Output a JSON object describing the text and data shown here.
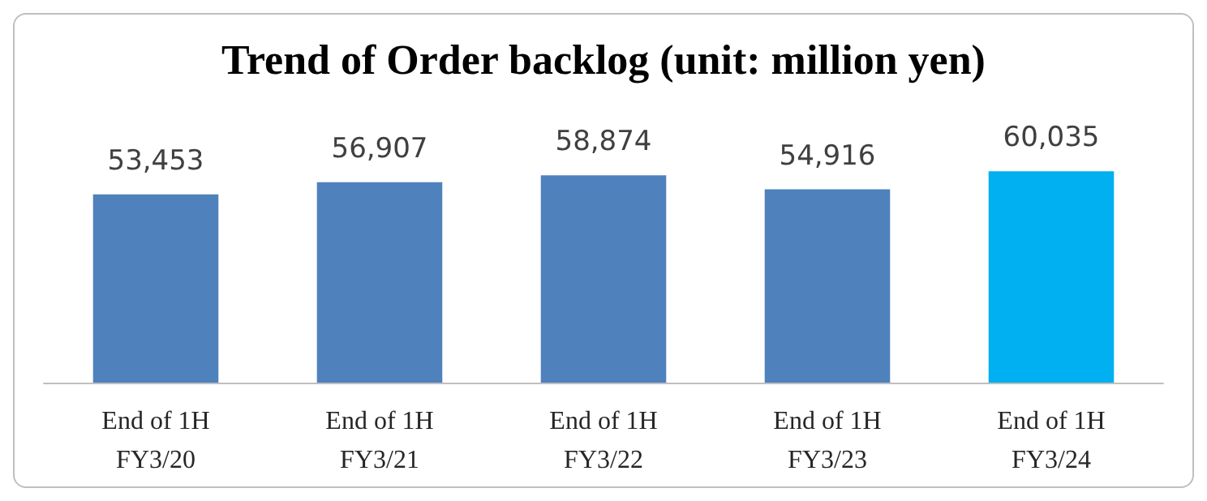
{
  "chart_data": {
    "type": "bar",
    "title": "Trend of Order backlog (unit: million yen)",
    "categories": [
      "End of 1H\nFY3/20",
      "End of 1H\nFY3/21",
      "End of 1H\nFY3/22",
      "End of 1H\nFY3/23",
      "End of 1H\nFY3/24"
    ],
    "values": [
      53453,
      56907,
      58874,
      54916,
      60035
    ],
    "value_labels": [
      "53,453",
      "56,907",
      "58,874",
      "54,916",
      "60,035"
    ],
    "colors": [
      "#4f81bd",
      "#4f81bd",
      "#4f81bd",
      "#4f81bd",
      "#00b0f0"
    ]
  }
}
